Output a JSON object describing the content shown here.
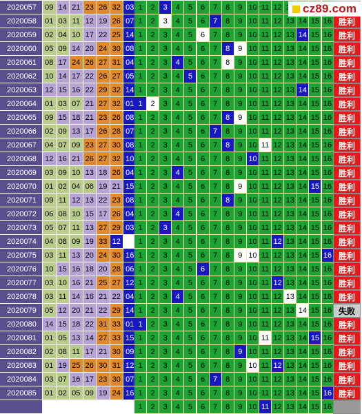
{
  "logo": {
    "text": "cz89.com",
    "mark_color": "#f0d000"
  },
  "result_labels": {
    "win": "胜利",
    "lose": "失败"
  },
  "colors": {
    "period_bg": "#5a4f8c",
    "green_col": "#b9cc8c",
    "purple_col": "#b7a3d6",
    "orange_col": "#e08a2c",
    "blue_col": "#1818c0",
    "grid_green": "#1ca334",
    "hit_blue": "#1818c0",
    "win_red": "#e41a1a",
    "lose_gray": "#cccccc"
  },
  "number_range": [
    "1",
    "2",
    "3",
    "4",
    "5",
    "6",
    "7",
    "8",
    "9",
    "10",
    "11",
    "12",
    "13",
    "14",
    "15",
    "16"
  ],
  "rows": [
    {
      "period": "2020057",
      "draw": [
        "09",
        "14",
        "21",
        "23",
        "26",
        "32",
        "03"
      ],
      "hit": 3,
      "holes": [],
      "result": "win"
    },
    {
      "period": "2020058",
      "draw": [
        "01",
        "03",
        "11",
        "12",
        "19",
        "26",
        "07"
      ],
      "hit": 7,
      "holes": [
        3
      ],
      "result": "win"
    },
    {
      "period": "2020059",
      "draw": [
        "02",
        "04",
        "10",
        "17",
        "22",
        "25",
        "14"
      ],
      "hit": 14,
      "holes": [
        6
      ],
      "result": "win"
    },
    {
      "period": "2020060",
      "draw": [
        "05",
        "09",
        "14",
        "20",
        "24",
        "30",
        "08"
      ],
      "hit": 8,
      "holes": [
        9
      ],
      "result": "win"
    },
    {
      "period": "2020061",
      "draw": [
        "08",
        "17",
        "24",
        "26",
        "27",
        "31",
        "04"
      ],
      "hit": 4,
      "holes": [
        8
      ],
      "result": "win"
    },
    {
      "period": "2020062",
      "draw": [
        "10",
        "14",
        "17",
        "22",
        "26",
        "27",
        "05"
      ],
      "hit": 5,
      "holes": [],
      "result": "win"
    },
    {
      "period": "2020063",
      "draw": [
        "12",
        "15",
        "16",
        "22",
        "29",
        "32",
        "14"
      ],
      "hit": 14,
      "holes": [],
      "result": "win"
    },
    {
      "period": "2020064",
      "draw": [
        "01",
        "03",
        "07",
        "21",
        "27",
        "32",
        "01"
      ],
      "hit": 1,
      "holes": [
        2
      ],
      "result": "win"
    },
    {
      "period": "2020065",
      "draw": [
        "09",
        "15",
        "18",
        "21",
        "23",
        "26",
        "08"
      ],
      "hit": 8,
      "holes": [
        9
      ],
      "result": "win"
    },
    {
      "period": "2020066",
      "draw": [
        "02",
        "09",
        "13",
        "17",
        "26",
        "28",
        "07"
      ],
      "hit": 7,
      "holes": [],
      "result": "win"
    },
    {
      "period": "2020067",
      "draw": [
        "04",
        "07",
        "09",
        "23",
        "27",
        "30",
        "08"
      ],
      "hit": 8,
      "holes": [
        11
      ],
      "result": "win"
    },
    {
      "period": "2020068",
      "draw": [
        "12",
        "16",
        "21",
        "26",
        "27",
        "32",
        "10"
      ],
      "hit": 10,
      "holes": [],
      "result": "win"
    },
    {
      "period": "2020069",
      "draw": [
        "03",
        "09",
        "10",
        "13",
        "18",
        "26",
        "04"
      ],
      "hit": 4,
      "holes": [],
      "result": "win"
    },
    {
      "period": "2020070",
      "draw": [
        "01",
        "02",
        "04",
        "06",
        "19",
        "21",
        "15"
      ],
      "hit": 15,
      "holes": [
        9
      ],
      "result": "win"
    },
    {
      "period": "2020071",
      "draw": [
        "09",
        "11",
        "12",
        "13",
        "22",
        "23",
        "08"
      ],
      "hit": 8,
      "holes": [],
      "result": "win"
    },
    {
      "period": "2020072",
      "draw": [
        "06",
        "08",
        "10",
        "15",
        "17",
        "26",
        "04"
      ],
      "hit": 4,
      "holes": [],
      "result": "win"
    },
    {
      "period": "2020073",
      "draw": [
        "05",
        "07",
        "11",
        "13",
        "27",
        "29",
        "03"
      ],
      "hit": 3,
      "holes": [],
      "result": "win"
    },
    {
      "period": "2020074",
      "draw": [
        "04",
        "08",
        "09",
        "19",
        "33",
        "12"
      ],
      "hit": 12,
      "holes": [],
      "result": "win"
    },
    {
      "period": "2020075",
      "draw": [
        "03",
        "11",
        "13",
        "20",
        "24",
        "30",
        "16"
      ],
      "hit": 16,
      "holes": [
        9,
        10
      ],
      "result": "win"
    },
    {
      "period": "2020076",
      "draw": [
        "10",
        "15",
        "16",
        "18",
        "20",
        "28",
        "06"
      ],
      "hit": 6,
      "holes": [],
      "result": "win"
    },
    {
      "period": "2020077",
      "draw": [
        "03",
        "10",
        "16",
        "21",
        "25",
        "27",
        "12"
      ],
      "hit": 12,
      "holes": [],
      "result": "win"
    },
    {
      "period": "2020078",
      "draw": [
        "03",
        "11",
        "14",
        "16",
        "21",
        "22",
        "04"
      ],
      "hit": 4,
      "holes": [
        13
      ],
      "result": "win"
    },
    {
      "period": "2020079",
      "draw": [
        "05",
        "12",
        "20",
        "21",
        "22",
        "29",
        "14"
      ],
      "hit": 0,
      "holes": [
        14
      ],
      "result": "lose"
    },
    {
      "period": "2020080",
      "draw": [
        "14",
        "15",
        "18",
        "22",
        "31",
        "33",
        "01"
      ],
      "hit": 1,
      "holes": [],
      "result": "win"
    },
    {
      "period": "2020081",
      "draw": [
        "01",
        "05",
        "13",
        "14",
        "27",
        "33",
        "15"
      ],
      "hit": 15,
      "holes": [
        11
      ],
      "result": "win"
    },
    {
      "period": "2020082",
      "draw": [
        "02",
        "08",
        "11",
        "17",
        "21",
        "30",
        "09"
      ],
      "hit": 9,
      "holes": [],
      "result": "win"
    },
    {
      "period": "2020083",
      "draw": [
        "01",
        "19",
        "25",
        "26",
        "30",
        "31",
        "12"
      ],
      "hit": 12,
      "holes": [
        10
      ],
      "result": "win"
    },
    {
      "period": "2020084",
      "draw": [
        "03",
        "07",
        "16",
        "17",
        "23",
        "30",
        "07"
      ],
      "hit": 7,
      "holes": [],
      "result": "win"
    },
    {
      "period": "2020085",
      "draw": [
        "01",
        "02",
        "05",
        "09",
        "19",
        "24",
        "16"
      ],
      "hit": 16,
      "holes": [],
      "result": "win"
    },
    {
      "period": "",
      "draw": [
        "",
        "",
        "",
        "",
        "",
        "",
        ""
      ],
      "hit": 11,
      "holes": [],
      "result": "blank"
    }
  ]
}
